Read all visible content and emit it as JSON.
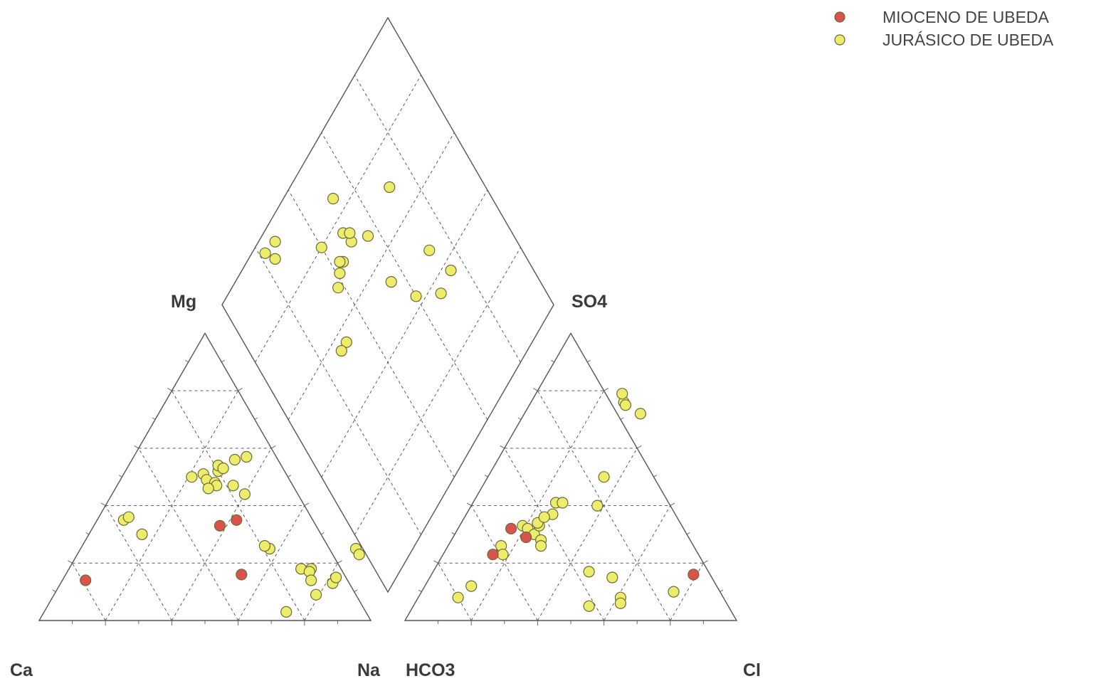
{
  "chart_data": {
    "type": "scatter",
    "diagram": "piper",
    "legend": {
      "placement": "top-right",
      "entries": [
        {
          "name": "MIOCENO DE UBEDA",
          "color": "#d9534a"
        },
        {
          "name": "JURÁSICO DE UBEDA",
          "color": "#eded6b"
        }
      ]
    },
    "corner_labels": {
      "ca": "Ca",
      "mg": "Mg",
      "na": "Na",
      "hco3": "HCO3",
      "so4": "SO4",
      "cl": "Cl"
    },
    "grid": true,
    "series": [
      {
        "name": "MIOCENO DE UBEDA",
        "color": "#d9534a",
        "cations": [
          [
            53,
            16
          ],
          [
            42,
            35
          ],
          [
            38,
            33
          ],
          [
            7,
            14
          ]
        ],
        "anions": [
          [
            79,
            16
          ],
          [
            22,
            29
          ],
          [
            15,
            23
          ],
          [
            16,
            32
          ]
        ]
      },
      {
        "name": "JURÁSICO DE UBEDA",
        "color": "#eded6b",
        "cations": [
          [
            82,
            13
          ],
          [
            79,
            9
          ],
          [
            73,
            3
          ],
          [
            73,
            18
          ],
          [
            70,
            18
          ],
          [
            57,
            25
          ],
          [
            55,
            26
          ],
          [
            21,
            50
          ],
          [
            24,
            51
          ],
          [
            26,
            49
          ],
          [
            28,
            52
          ],
          [
            27,
            54
          ],
          [
            29,
            53
          ],
          [
            31,
            56
          ],
          [
            34,
            57
          ],
          [
            29,
            48
          ],
          [
            30,
            47
          ],
          [
            40,
            44
          ],
          [
            35,
            47
          ],
          [
            83,
            25
          ],
          [
            85,
            23
          ],
          [
            73,
            17
          ],
          [
            75,
            14
          ],
          [
            82,
            15
          ],
          [
            8,
            35
          ],
          [
            9,
            36
          ],
          [
            16,
            30
          ],
          [
            28,
            46
          ]
        ],
        "anions": [
          [
            28,
            76
          ],
          [
            26,
            79
          ],
          [
            29,
            75
          ],
          [
            35,
            72
          ],
          [
            35,
            50
          ],
          [
            38,
            40
          ],
          [
            19,
            33
          ],
          [
            21,
            32
          ],
          [
            24,
            30
          ],
          [
            27,
            28
          ],
          [
            28,
            26
          ],
          [
            24,
            33
          ],
          [
            23,
            34
          ],
          [
            16,
            26
          ],
          [
            18,
            23
          ],
          [
            12,
            8
          ],
          [
            14,
            12
          ],
          [
            47,
            17
          ],
          [
            55,
            15
          ],
          [
            53,
            5
          ],
          [
            61,
            8
          ],
          [
            62,
            6
          ],
          [
            76,
            10
          ],
          [
            25,
            41
          ],
          [
            27,
            41
          ],
          [
            26,
            37
          ],
          [
            24,
            36
          ]
        ],
        "diamond": [
          [
            96,
            22
          ],
          [
            95,
            27
          ],
          [
            92,
            24
          ],
          [
            85,
            52
          ],
          [
            80,
            40
          ],
          [
            70,
            71
          ],
          [
            76,
            49
          ],
          [
            72,
            50
          ],
          [
            71,
            44
          ],
          [
            70,
            41
          ],
          [
            74,
            51
          ],
          [
            72,
            43
          ],
          [
            68,
            38
          ],
          [
            68,
            56
          ],
          [
            56,
            31
          ],
          [
            56,
            28
          ],
          [
            53,
            55
          ],
          [
            43,
            60
          ],
          [
            47,
            72
          ],
          [
            37,
            75
          ],
          [
            36,
            68
          ]
        ]
      }
    ]
  }
}
